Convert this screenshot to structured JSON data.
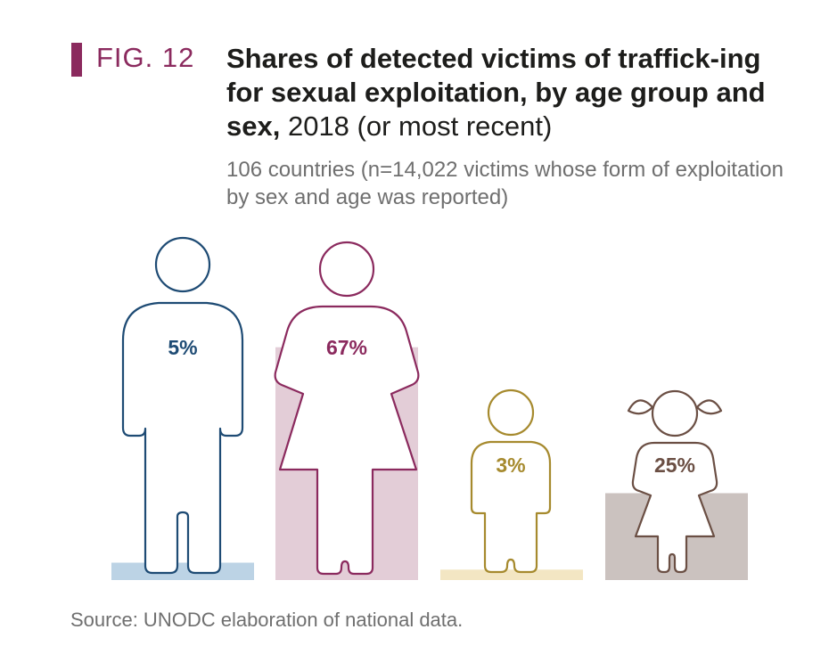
{
  "figure": {
    "label": "FIG. 12",
    "title_bold": "Shares of detected victims of traffick-ing for sexual exploitation, by age group and sex,",
    "title_regular": " 2018 (or most recent)",
    "subtitle": "106 countries (n=14,022 victims whose form of exploitation by sex and age was reported)",
    "source": "Source: UNODC elaboration of national data."
  },
  "colors": {
    "accent": "#8b2a5e",
    "men": "#1e4b74",
    "women": "#8b2a5e",
    "boys": "#a68a2e",
    "girls": "#6b4f44"
  },
  "chart_data": {
    "type": "bar",
    "categories": [
      "Men",
      "Women",
      "Boys",
      "Girls"
    ],
    "values": [
      5,
      67,
      3,
      25
    ],
    "value_labels": [
      "5%",
      "67%",
      "3%",
      "25%"
    ],
    "unit": "%",
    "ylim": [
      0,
      100
    ],
    "bar_colors": [
      "#bcd3e5",
      "#e3cdd7",
      "#f3e6c3",
      "#cbc2bf"
    ],
    "icon_colors": [
      "#1e4b74",
      "#8b2a5e",
      "#a68a2e",
      "#6b4f44"
    ],
    "icons": [
      "man-icon",
      "woman-icon",
      "boy-icon",
      "girl-icon"
    ]
  }
}
